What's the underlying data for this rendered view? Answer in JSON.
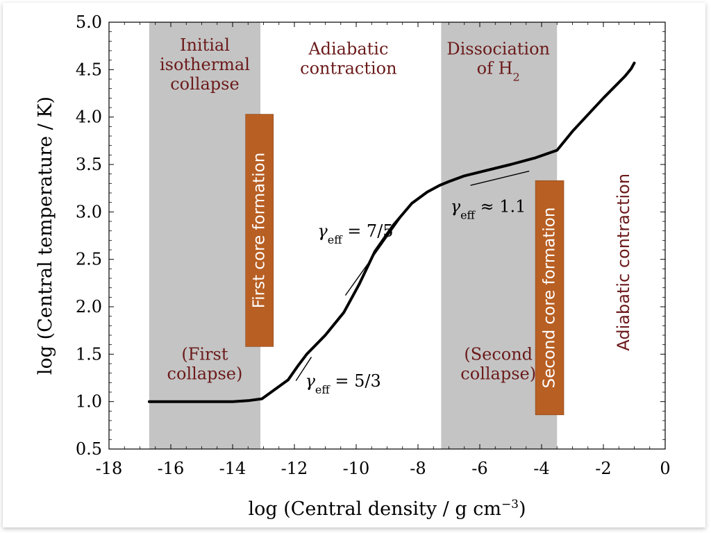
{
  "chart_data": {
    "type": "line",
    "xlabel_main": "log (Central density / g cm",
    "xlabel_sup": "−3",
    "xlabel_close": ")",
    "ylabel": "log (Central temperature / K)",
    "xlim": [
      -18,
      0
    ],
    "ylim": [
      0.5,
      5.0
    ],
    "x_ticks": [
      -18,
      -16,
      -14,
      -12,
      -10,
      -8,
      -6,
      -4,
      -2,
      0
    ],
    "x_tick_labels": [
      "-18",
      "-16",
      "-14",
      "-12",
      "-10",
      "-8",
      "-6",
      "-4",
      "-2",
      "0"
    ],
    "y_ticks": [
      0.5,
      1.0,
      1.5,
      2.0,
      2.5,
      3.0,
      3.5,
      4.0,
      4.5,
      5.0
    ],
    "y_tick_labels": [
      "0.5",
      "1.0",
      "1.5",
      "2.0",
      "2.5",
      "3.0",
      "3.5",
      "4.0",
      "4.5",
      "5.0"
    ],
    "grid": false,
    "series": [
      {
        "color": "#000000",
        "x": [
          -16.7,
          -15.0,
          -14.0,
          -13.5,
          -13.05,
          -12.2,
          -11.9,
          -11.6,
          -11.0,
          -10.4,
          -9.9,
          -9.4,
          -8.8,
          -8.2,
          -7.7,
          -7.3,
          -7.0,
          -6.5,
          -6.0,
          -5.0,
          -4.2,
          -3.5,
          -3.0,
          -2.0,
          -1.3,
          -1.1,
          -1.0
        ],
        "y": [
          1.0,
          1.0,
          1.0,
          1.01,
          1.03,
          1.23,
          1.37,
          1.5,
          1.7,
          1.94,
          2.24,
          2.58,
          2.86,
          3.09,
          3.21,
          3.28,
          3.32,
          3.38,
          3.42,
          3.5,
          3.57,
          3.65,
          3.85,
          4.2,
          4.43,
          4.51,
          4.57
        ]
      }
    ],
    "shaded_bands": [
      {
        "x0": -16.7,
        "x1": -13.1,
        "color": "#c4c4c4"
      },
      {
        "x0": -7.25,
        "x1": -3.5,
        "color": "#c4c4c4"
      }
    ],
    "slope_guides": [
      {
        "x0": -11.95,
        "y0": 1.22,
        "x1": -11.45,
        "y1": 1.47
      },
      {
        "x0": -10.35,
        "y0": 2.12,
        "x1": -8.25,
        "y1": 3.08
      },
      {
        "x0": -6.3,
        "y0": 3.28,
        "x1": -4.4,
        "y1": 3.43
      }
    ],
    "phase_labels": [
      {
        "lines": [
          "Initial",
          "isothermal",
          "collapse"
        ],
        "x": -14.9,
        "y": 4.7
      },
      {
        "lines": [
          "Adiabatic",
          "contraction"
        ],
        "x": -10.25,
        "y": 4.66
      },
      {
        "lines": [
          "Dissociation",
          "of H"
        ],
        "subscript": "2",
        "x": -5.4,
        "y": 4.66
      },
      {
        "lines": [
          "(First",
          "collapse)"
        ],
        "x": -14.9,
        "y": 1.44
      },
      {
        "lines": [
          "(Second",
          "collapse)"
        ],
        "x": -5.4,
        "y": 1.44
      }
    ],
    "annotations": [
      {
        "symbol": "γ",
        "sub": "eff",
        "rhs": " = 5/3",
        "x": -11.65,
        "y": 1.16
      },
      {
        "symbol": "γ",
        "sub": "eff",
        "rhs": " = 7/5",
        "x": -11.25,
        "y": 2.74
      },
      {
        "symbol": "γ",
        "sub": "eff",
        "rhs": " ≈ 1.1",
        "x": -6.95,
        "y": 3.0
      }
    ],
    "boxes": [
      {
        "text": "First core formation",
        "x0": -13.58,
        "x1": -12.68,
        "y0": 1.58,
        "y1": 4.03,
        "color": "#b85f23"
      },
      {
        "text": "Second core formation",
        "x0": -4.2,
        "x1": -3.28,
        "y0": 0.86,
        "y1": 3.33,
        "color": "#b85f23"
      }
    ],
    "rotated_label": {
      "text": "Adiabatic contraction",
      "x": -1.35,
      "y": 2.47
    }
  },
  "colors": {
    "phase_text": "#6b1a1a",
    "box_text": "#ffffff",
    "axis": "#000000"
  }
}
